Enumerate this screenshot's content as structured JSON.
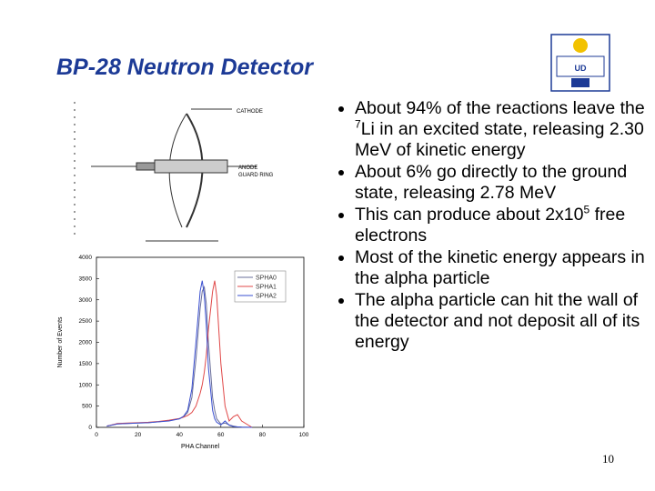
{
  "title": "BP-28 Neutron Detector",
  "page_number": "10",
  "diagram_labels": [
    "CATHODE",
    "ANODE",
    "GUARD RING"
  ],
  "bullets": [
    {
      "before": "About 94% of the reactions leave the ",
      "sup": "7",
      "after": "Li in an excited state, releasing 2.30 MeV of kinetic energy"
    },
    {
      "before": "About 6% go directly to the ground state, releasing 2.78 MeV"
    },
    {
      "before": "This can produce about 2x10",
      "sup": "5",
      "after": " free electrons"
    },
    {
      "before": "Most of the kinetic energy appears in the alpha particle"
    },
    {
      "before": "The alpha particle can hit the wall of the detector and not deposit all of its energy"
    }
  ],
  "chart_data": {
    "type": "line",
    "xlabel": "PHA Channel",
    "ylabel": "Number of Events",
    "x": [
      5,
      10,
      15,
      20,
      25,
      30,
      35,
      40,
      42,
      44,
      46,
      48,
      50,
      51,
      52,
      53,
      54,
      56,
      57,
      58,
      60,
      62,
      64,
      66,
      68,
      70,
      75
    ],
    "series": [
      {
        "name": "SPHA0",
        "color": "#6a6f9a",
        "values": [
          30,
          80,
          90,
          100,
          110,
          130,
          160,
          200,
          250,
          350,
          700,
          1600,
          2800,
          3200,
          3300,
          2900,
          2000,
          700,
          400,
          200,
          80,
          100,
          60,
          30,
          10,
          5,
          0
        ]
      },
      {
        "name": "SPHA1",
        "color": "#e04848",
        "values": [
          30,
          90,
          100,
          110,
          120,
          140,
          170,
          210,
          240,
          280,
          350,
          500,
          800,
          1000,
          1300,
          1700,
          2300,
          3200,
          3450,
          3100,
          1500,
          500,
          150,
          250,
          300,
          150,
          0
        ]
      },
      {
        "name": "SPHA2",
        "color": "#3a4fd0",
        "values": [
          30,
          80,
          90,
          100,
          110,
          130,
          150,
          200,
          260,
          400,
          900,
          2000,
          3200,
          3450,
          3100,
          2400,
          1400,
          400,
          200,
          120,
          60,
          150,
          50,
          20,
          10,
          5,
          0
        ]
      }
    ],
    "xlim": [
      0,
      100
    ],
    "xticks": [
      0,
      20,
      40,
      60,
      80,
      100
    ],
    "ylim": [
      0,
      4000
    ],
    "yticks": [
      0,
      500,
      1000,
      1500,
      2000,
      2500,
      3000,
      3500,
      4000
    ],
    "legend": "upper right"
  }
}
